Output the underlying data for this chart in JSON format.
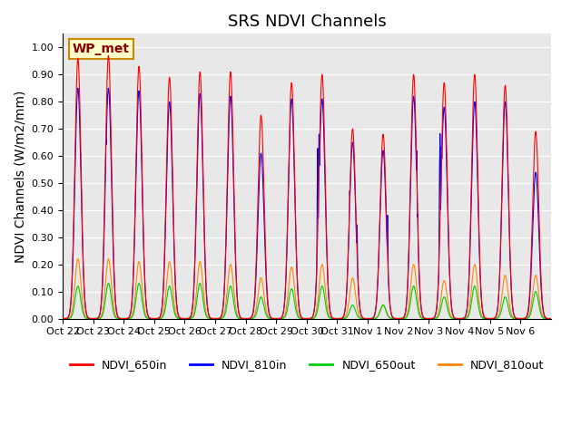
{
  "title": "SRS NDVI Channels",
  "ylabel": "NDVI Channels (W/m2/mm)",
  "ylim": [
    0.0,
    1.05
  ],
  "background_color": "#e8e8e8",
  "colors": {
    "NDVI_650in": "#ff0000",
    "NDVI_810in": "#0000ff",
    "NDVI_650out": "#00cc00",
    "NDVI_810out": "#ff8800"
  },
  "wp_met_label": "WP_met",
  "wp_met_bg": "#ffffcc",
  "wp_met_border": "#cc8800",
  "legend_labels": [
    "NDVI_650in",
    "NDVI_810in",
    "NDVI_650out",
    "NDVI_810out"
  ],
  "tick_labels": [
    "Oct 22",
    "Oct 23",
    "Oct 24",
    "Oct 25",
    "Oct 26",
    "Oct 27",
    "Oct 28",
    "Oct 29",
    "Oct 30",
    "Oct 31",
    "Nov 1",
    "Nov 2",
    "Nov 3",
    "Nov 4",
    "Nov 5",
    "Nov 6"
  ],
  "num_days": 16,
  "day_peaks_650in": [
    0.96,
    0.97,
    0.93,
    0.89,
    0.91,
    0.91,
    0.75,
    0.87,
    0.9,
    0.7,
    0.68,
    0.9,
    0.87,
    0.9,
    0.86,
    0.69
  ],
  "day_peaks_810in": [
    0.85,
    0.85,
    0.84,
    0.8,
    0.83,
    0.82,
    0.61,
    0.81,
    0.81,
    0.65,
    0.62,
    0.82,
    0.78,
    0.8,
    0.8,
    0.54
  ],
  "day_peaks_650out": [
    0.12,
    0.13,
    0.13,
    0.12,
    0.13,
    0.12,
    0.08,
    0.11,
    0.12,
    0.05,
    0.05,
    0.12,
    0.08,
    0.12,
    0.08,
    0.1
  ],
  "day_peaks_810out": [
    0.22,
    0.22,
    0.21,
    0.21,
    0.21,
    0.2,
    0.15,
    0.19,
    0.2,
    0.15,
    0.05,
    0.2,
    0.14,
    0.2,
    0.16,
    0.16
  ],
  "points_per_day": 200,
  "title_fontsize": 13,
  "axis_fontsize": 10,
  "tick_fontsize": 8
}
